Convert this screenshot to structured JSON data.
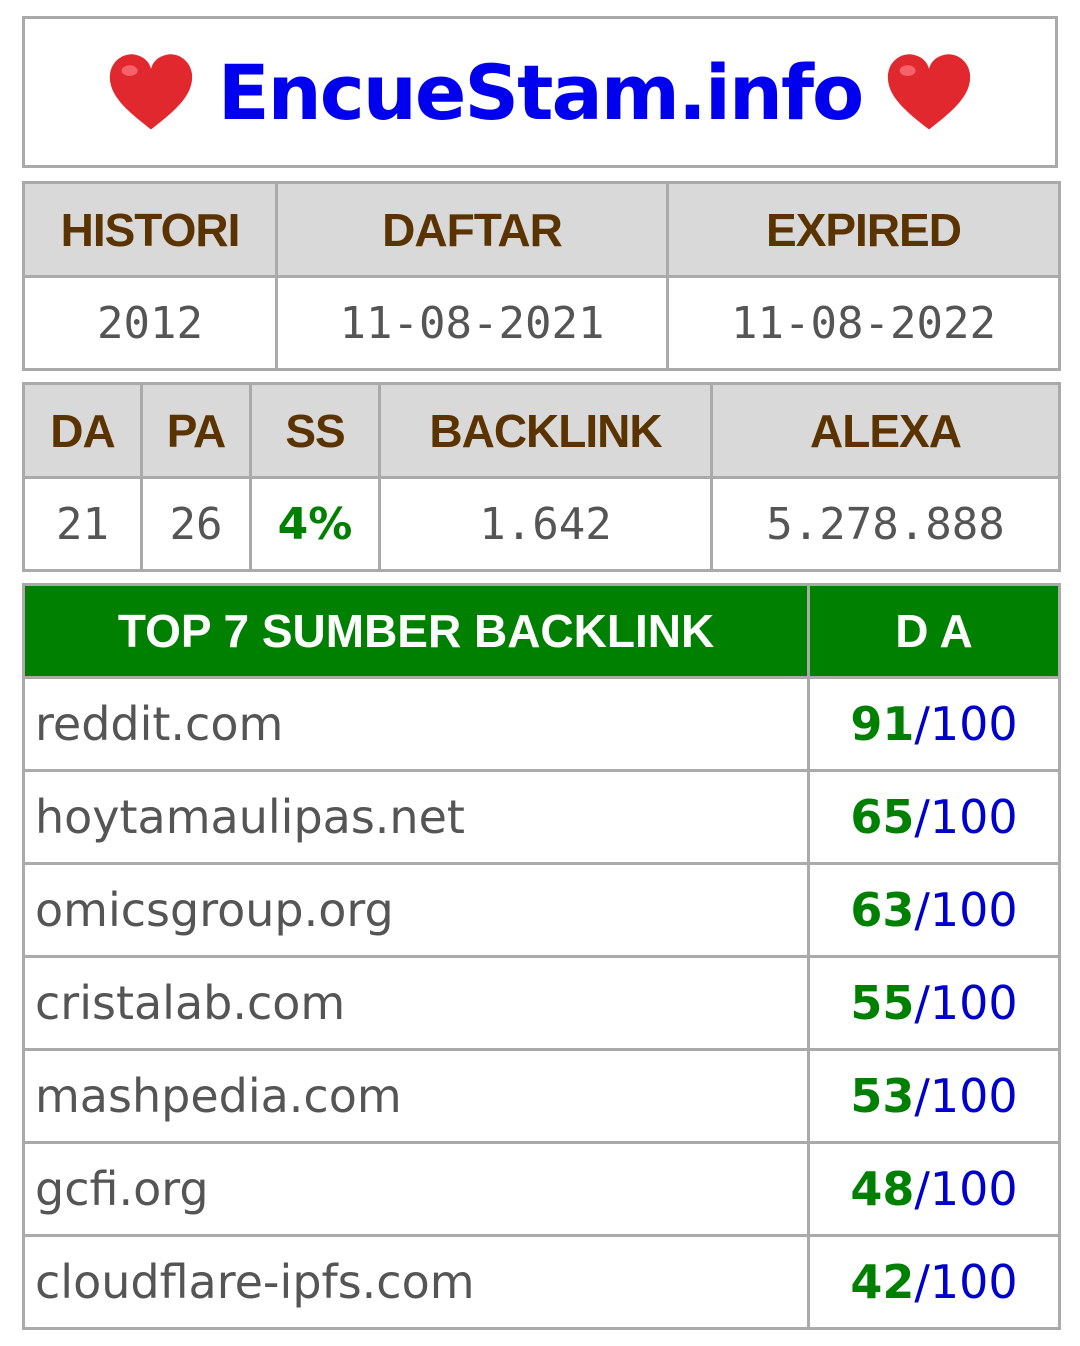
{
  "site": {
    "title": "EncueStam.info",
    "decor_icon": "red-heart-icon",
    "heart_color": "#e0282e"
  },
  "domain_info": {
    "headers": [
      "HISTORI",
      "DAFTAR",
      "EXPIRED"
    ],
    "values": [
      "2012",
      "11-08-2021",
      "11-08-2022"
    ]
  },
  "metrics": {
    "headers": [
      "DA",
      "PA",
      "SS",
      "BACKLINK",
      "ALEXA"
    ],
    "values": [
      "21",
      "26",
      "4%",
      "1.642",
      "5.278.888"
    ]
  },
  "backlinks": {
    "header_source": "TOP 7 SUMBER BACKLINK",
    "header_da": "D A",
    "da_separator": "/",
    "rows": [
      {
        "domain": "reddit.com",
        "da": "91",
        "max": "100"
      },
      {
        "domain": "hoytamaulipas.net",
        "da": "65",
        "max": "100"
      },
      {
        "domain": "omicsgroup.org",
        "da": "63",
        "max": "100"
      },
      {
        "domain": "cristalab.com",
        "da": "55",
        "max": "100"
      },
      {
        "domain": "mashpedia.com",
        "da": "53",
        "max": "100"
      },
      {
        "domain": "gcfi.org",
        "da": "48",
        "max": "100"
      },
      {
        "domain": "cloudflare-ipfs.com",
        "da": "42",
        "max": "100"
      }
    ]
  },
  "colors": {
    "header_bg": "#d9d9d9",
    "header_text": "#5a3300",
    "green": "#008000",
    "blue": "#0000cc",
    "title_blue": "#0000ee"
  }
}
